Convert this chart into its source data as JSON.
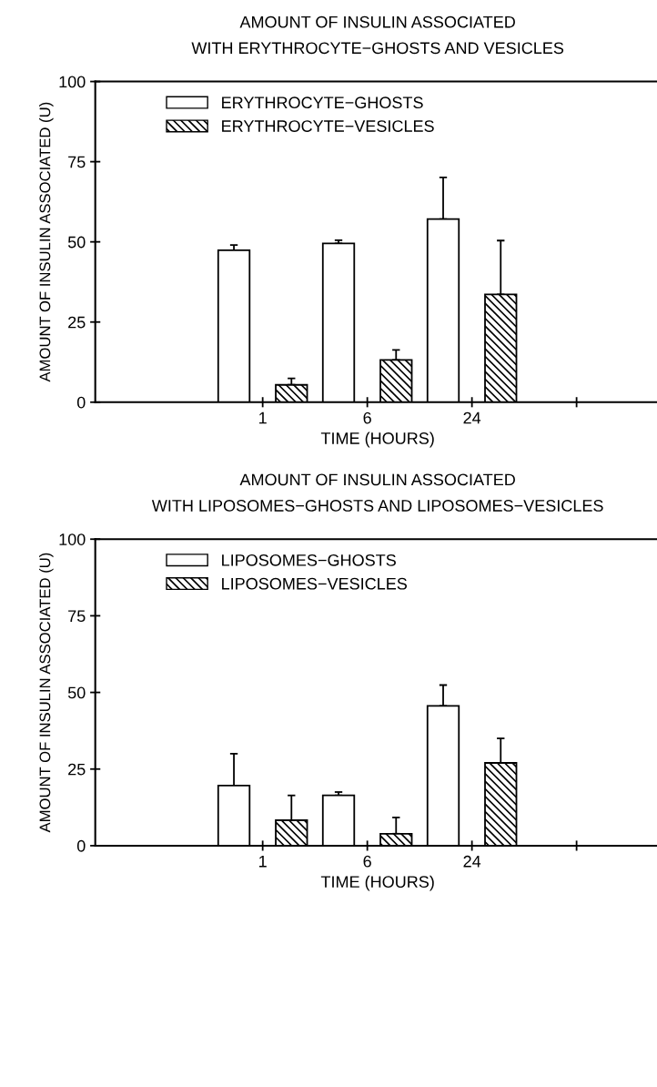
{
  "chart_data": [
    {
      "type": "bar",
      "title": "AMOUNT OF INSULIN ASSOCIATED\nWITH ERYTHROCYTE−GHOSTS AND VESICLES",
      "xlabel": "TIME (HOURS)",
      "ylabel": "AMOUNT OF INSULIN ASSOCIATED (U)",
      "categories": [
        "1",
        "6",
        "24",
        null
      ],
      "ylim": [
        0,
        100
      ],
      "yticks": [
        0,
        25,
        50,
        75,
        100
      ],
      "grid": false,
      "legend": "top left",
      "series": [
        {
          "name": "ERYTHROCYTE−GHOSTS",
          "color": "#ffffff",
          "values": [
            47.4,
            49.5,
            57.1,
            null
          ],
          "errors": [
            [
              47.4,
              49.0
            ],
            [
              49.5,
              50.5
            ],
            [
              57.1,
              70.1
            ],
            null
          ]
        },
        {
          "name": "ERYTHROCYTE−VESICLES",
          "color": "#000000",
          "values": [
            5.4,
            13.2,
            33.6,
            null
          ],
          "errors": [
            [
              5.4,
              7.4
            ],
            [
              13.2,
              16.3
            ],
            [
              33.6,
              50.4
            ],
            null
          ]
        }
      ]
    },
    {
      "type": "bar",
      "title": "AMOUNT OF INSULIN ASSOCIATED\nWITH LIPOSOMES−GHOSTS AND LIPOSOMES−VESICLES",
      "xlabel": "TIME (HOURS)",
      "ylabel": "AMOUNT OF INSULIN ASSOCIATED (U)",
      "categories": [
        "1",
        "6",
        "24",
        null
      ],
      "ylim": [
        0,
        100
      ],
      "yticks": [
        0,
        25,
        50,
        75,
        100
      ],
      "grid": false,
      "legend": "top left",
      "series": [
        {
          "name": "LIPOSOMES−GHOSTS",
          "color": "#ffffff",
          "values": [
            19.6,
            16.4,
            45.6,
            null
          ],
          "errors": [
            [
              19.6,
              30.0
            ],
            [
              16.4,
              17.5
            ],
            [
              45.6,
              52.4
            ],
            null
          ]
        },
        {
          "name": "LIPOSOMES−VESICLES",
          "color": "#000000",
          "values": [
            8.3,
            3.9,
            27.0,
            null
          ],
          "errors": [
            [
              8.3,
              16.4
            ],
            [
              3.9,
              9.2
            ],
            [
              27.0,
              35.0
            ],
            null
          ]
        }
      ]
    }
  ]
}
